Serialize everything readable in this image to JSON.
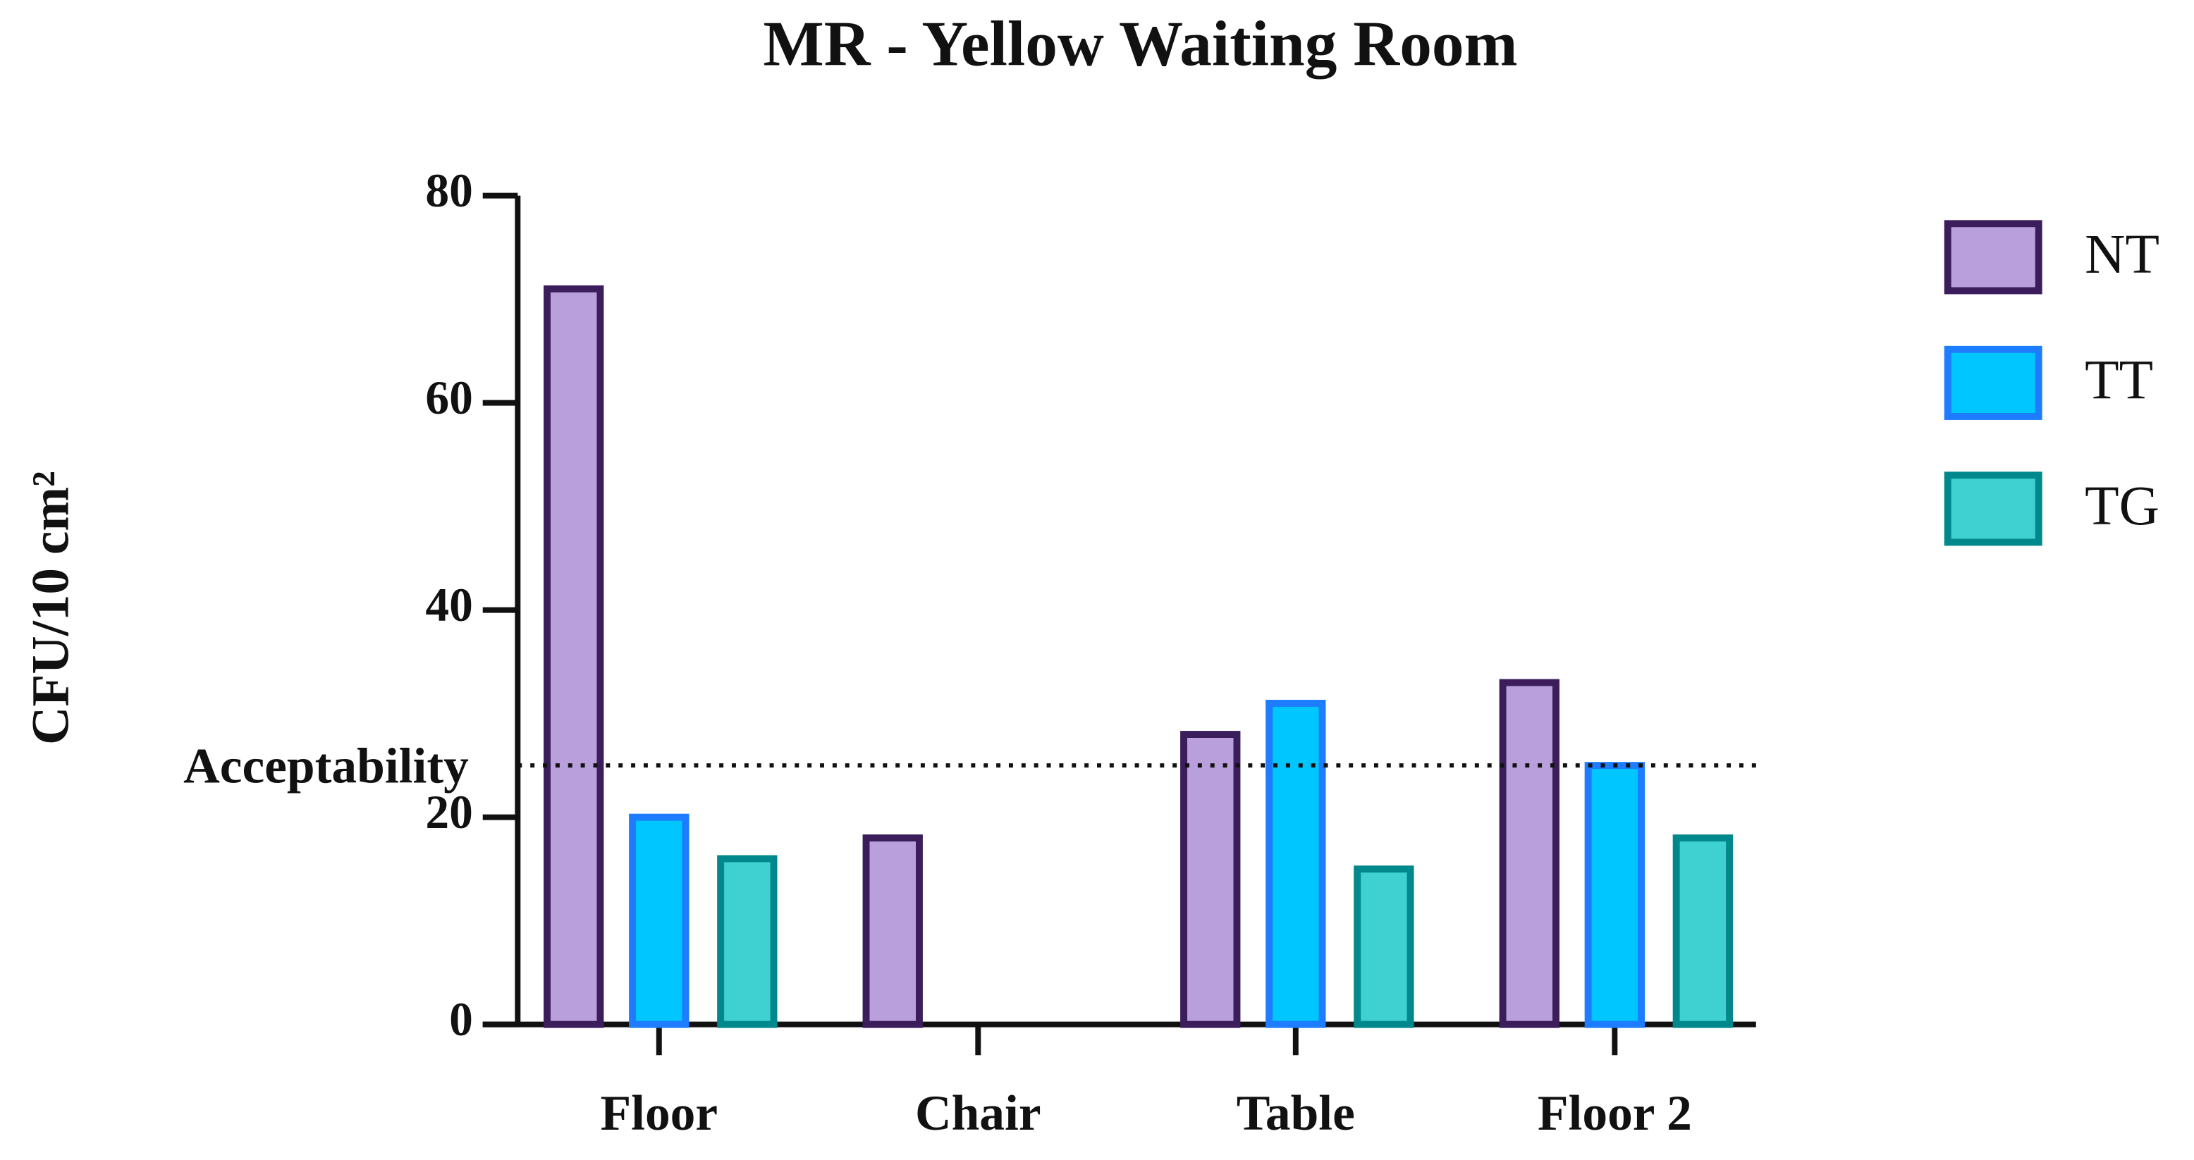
{
  "chart_data": {
    "type": "bar",
    "title": "MR - Yellow Waiting Room",
    "y_label": "CFU/10 cm²",
    "categories": [
      "Floor",
      "Chair",
      "Table",
      "Floor 2"
    ],
    "series": [
      {
        "name": "NT",
        "color": "#b9a0dd",
        "edge": "#3b1d5c",
        "values": [
          71,
          18,
          28,
          33
        ]
      },
      {
        "name": "TT",
        "color": "#00c6ff",
        "edge": "#1e7cff",
        "values": [
          20,
          null,
          31,
          25
        ]
      },
      {
        "name": "TG",
        "color": "#3fd0d2",
        "edge": "#00888c",
        "values": [
          16,
          null,
          15,
          18
        ]
      }
    ],
    "threshold": {
      "value": 25,
      "label": "Acceptability"
    },
    "ylim": [
      0,
      80
    ],
    "yticks": [
      0,
      20,
      40,
      60,
      80
    ],
    "legend": "right",
    "grid": false
  }
}
